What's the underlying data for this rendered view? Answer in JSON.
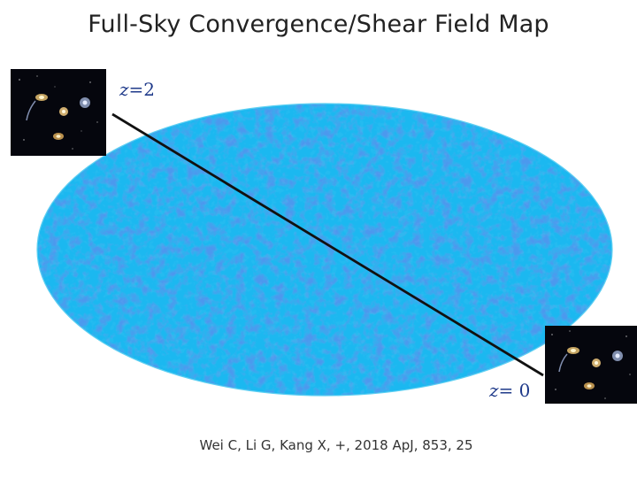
{
  "title": "Full-Sky Convergence/Shear Field Map",
  "citation": "Wei C, Li G, Kang X, +, 2018  ApJ, 853, 25",
  "labels": {
    "z_top_var": "z",
    "z_top_value": "=2",
    "z_bottom_var": "z",
    "z_bottom_value": "= 0"
  },
  "colors": {
    "map_base": "#1fb8f0",
    "map_dark": "#1550d8",
    "map_light": "#7ff0ea",
    "map_yellow": "#e8f46a",
    "line": "#111111",
    "label": "#1f3a8a"
  },
  "images": {
    "top_thumbnail": "galaxy-cluster-image",
    "bottom_thumbnail": "galaxy-cluster-image"
  }
}
